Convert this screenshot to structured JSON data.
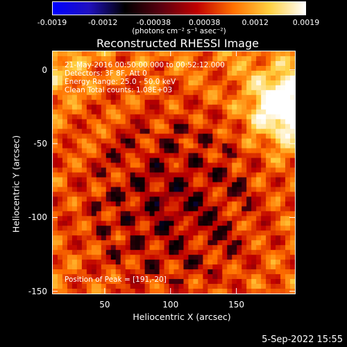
{
  "colorbar": {
    "ticks": [
      "-0.0019",
      "-0.0012",
      "-0.00038",
      "0.00038",
      "0.0012",
      "0.0019"
    ],
    "units": "(photons cm⁻² s⁻¹ asec⁻²)",
    "stops": [
      "#0000ff",
      "#2010c0",
      "#000000",
      "#5a0010",
      "#c00000",
      "#ff7000",
      "#ffd040",
      "#ffffff"
    ]
  },
  "chart_data": {
    "type": "heatmap",
    "title": "Reconstructed RHESSI Image",
    "xlabel": "Heliocentric X (arcsec)",
    "ylabel": "Heliocentric Y (arcsec)",
    "xlim": [
      10,
      195
    ],
    "ylim": [
      -152,
      13
    ],
    "xticks": [
      50,
      100,
      150
    ],
    "yticks": [
      0,
      -50,
      -100,
      -150
    ],
    "zrange": [
      -0.0019,
      0.0019
    ],
    "peak": [
      191,
      -20
    ],
    "annotations": [
      "21-May-2016 00:50:00.000 to 00:52:12.000",
      "Detectors: 3F 8F, Att 0",
      "Energy Range: 25.0 - 50.0 keV",
      "Clean     Total counts: 1.08E+03"
    ],
    "peak_label": "Position of Peak = [191,-20]"
  },
  "timestamp": "5-Sep-2022 15:55"
}
